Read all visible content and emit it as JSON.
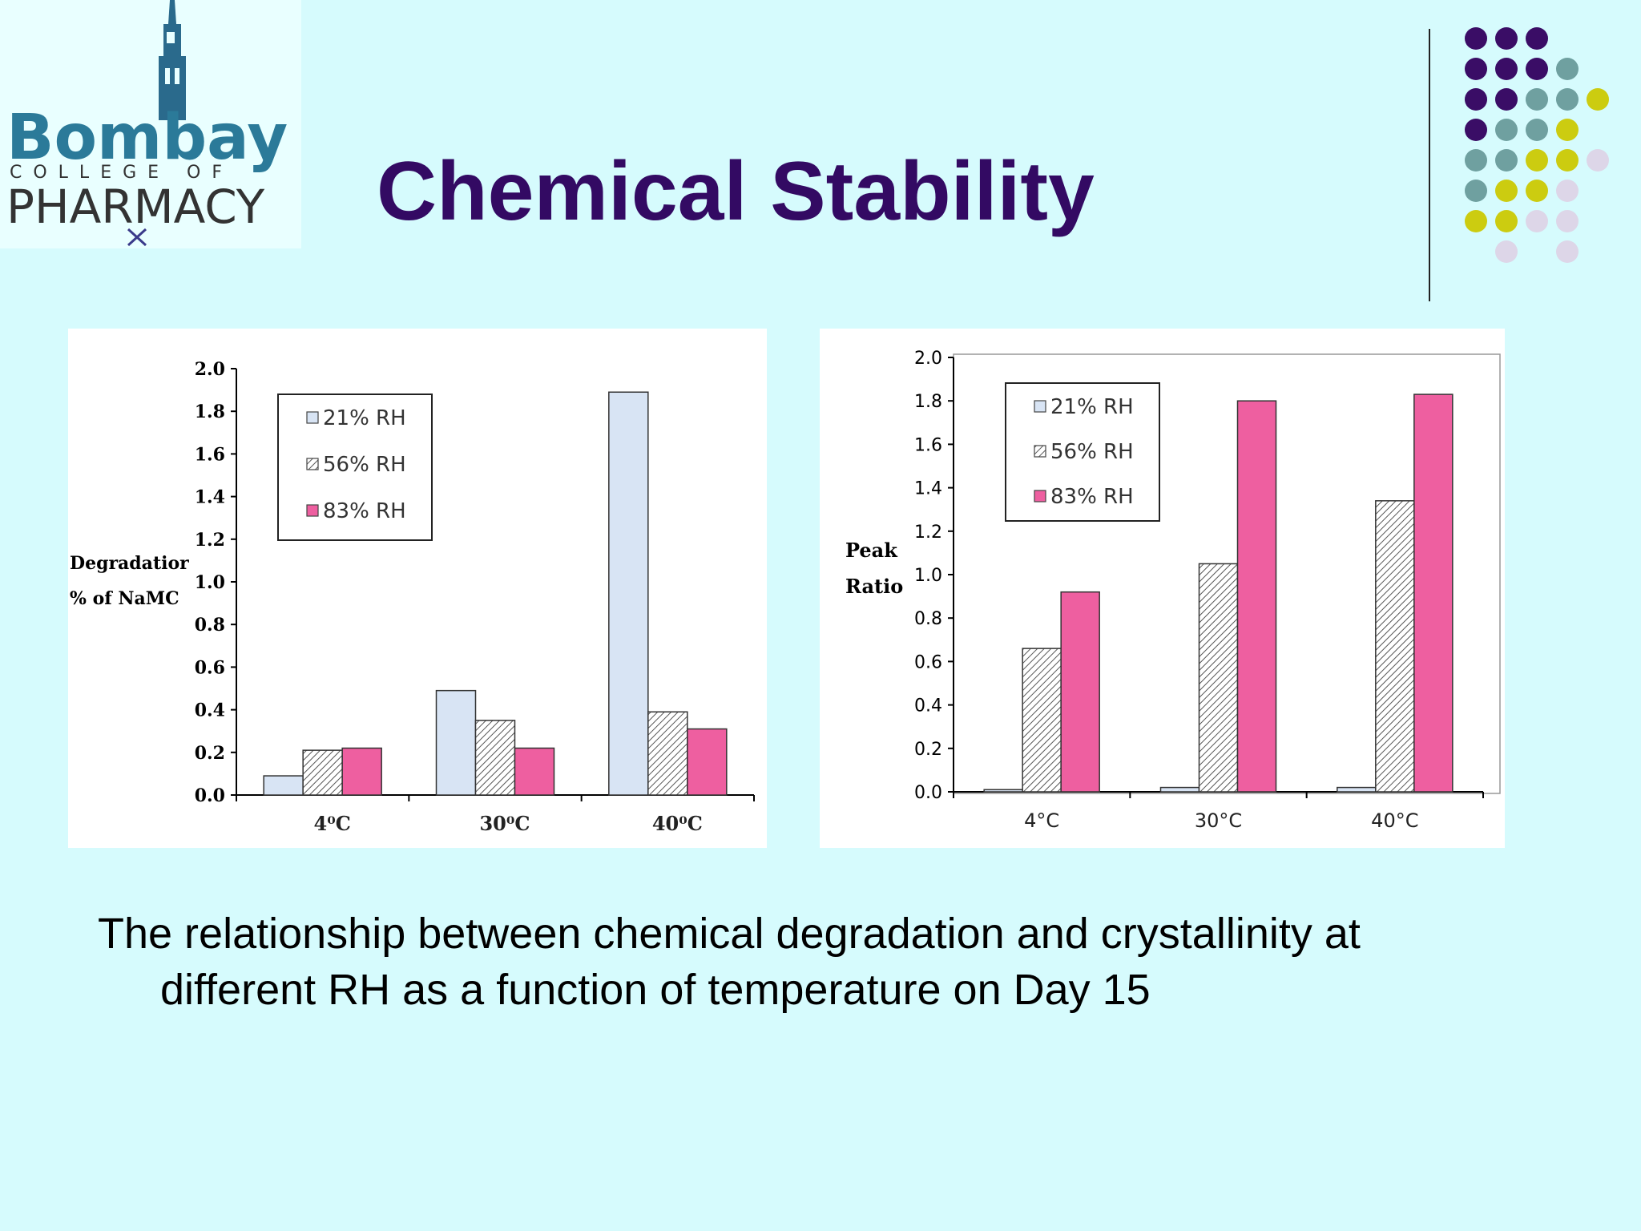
{
  "slide": {
    "title": "Chemical Stability",
    "caption_line1": "The relationship between chemical degradation and crystallinity at",
    "caption_line2": "different RH as a function  of temperature on Day 15"
  },
  "logo": {
    "word1": "Bombay",
    "word2": "COLLEGE OF",
    "word3": "PHARMACY"
  },
  "colors": {
    "background": "#d6fbfd",
    "title": "#330a63",
    "rh21": "#d8e4f4",
    "rh56": "#dcdcec",
    "rh83": "#ee5fa0",
    "dot_purple": "#3a0d66",
    "dot_teal": "#6fa0a0",
    "dot_yellow": "#cccc10",
    "dot_lilac": "#ddd6e8"
  },
  "chart_data": [
    {
      "type": "bar",
      "categories": [
        "4⁰C",
        "30⁰C",
        "40⁰C"
      ],
      "series": [
        {
          "name": "21% RH",
          "values": [
            0.09,
            0.49,
            1.89
          ]
        },
        {
          "name": "56% RH",
          "values": [
            0.21,
            0.35,
            0.39
          ]
        },
        {
          "name": "83% RH",
          "values": [
            0.22,
            0.22,
            0.31
          ]
        }
      ],
      "yticks": [
        "0.0",
        "0.2",
        "0.4",
        "0.6",
        "0.8",
        "1.0",
        "1.2",
        "1.4",
        "1.6",
        "1.8",
        "2.0"
      ],
      "ylabel_line1": "Degradatior",
      "ylabel_line2": "% of NaMC",
      "ylim": [
        0,
        2.0
      ],
      "legend": "top-left",
      "grid": false
    },
    {
      "type": "bar",
      "categories": [
        "4°C",
        "30°C",
        "40°C"
      ],
      "series": [
        {
          "name": "21% RH",
          "values": [
            0.01,
            0.02,
            0.02
          ]
        },
        {
          "name": "56% RH",
          "values": [
            0.66,
            1.05,
            1.34
          ]
        },
        {
          "name": "83% RH",
          "values": [
            0.92,
            1.8,
            1.83
          ]
        }
      ],
      "yticks": [
        "0.0",
        "0.2",
        "0.4",
        "0.6",
        "0.8",
        "1.0",
        "1.2",
        "1.4",
        "1.6",
        "1.8",
        "2.0"
      ],
      "ylabel_line1": "Peak",
      "ylabel_line2": "Ratio",
      "ylim": [
        0,
        2.0
      ],
      "legend": "top-left",
      "grid": false
    }
  ]
}
